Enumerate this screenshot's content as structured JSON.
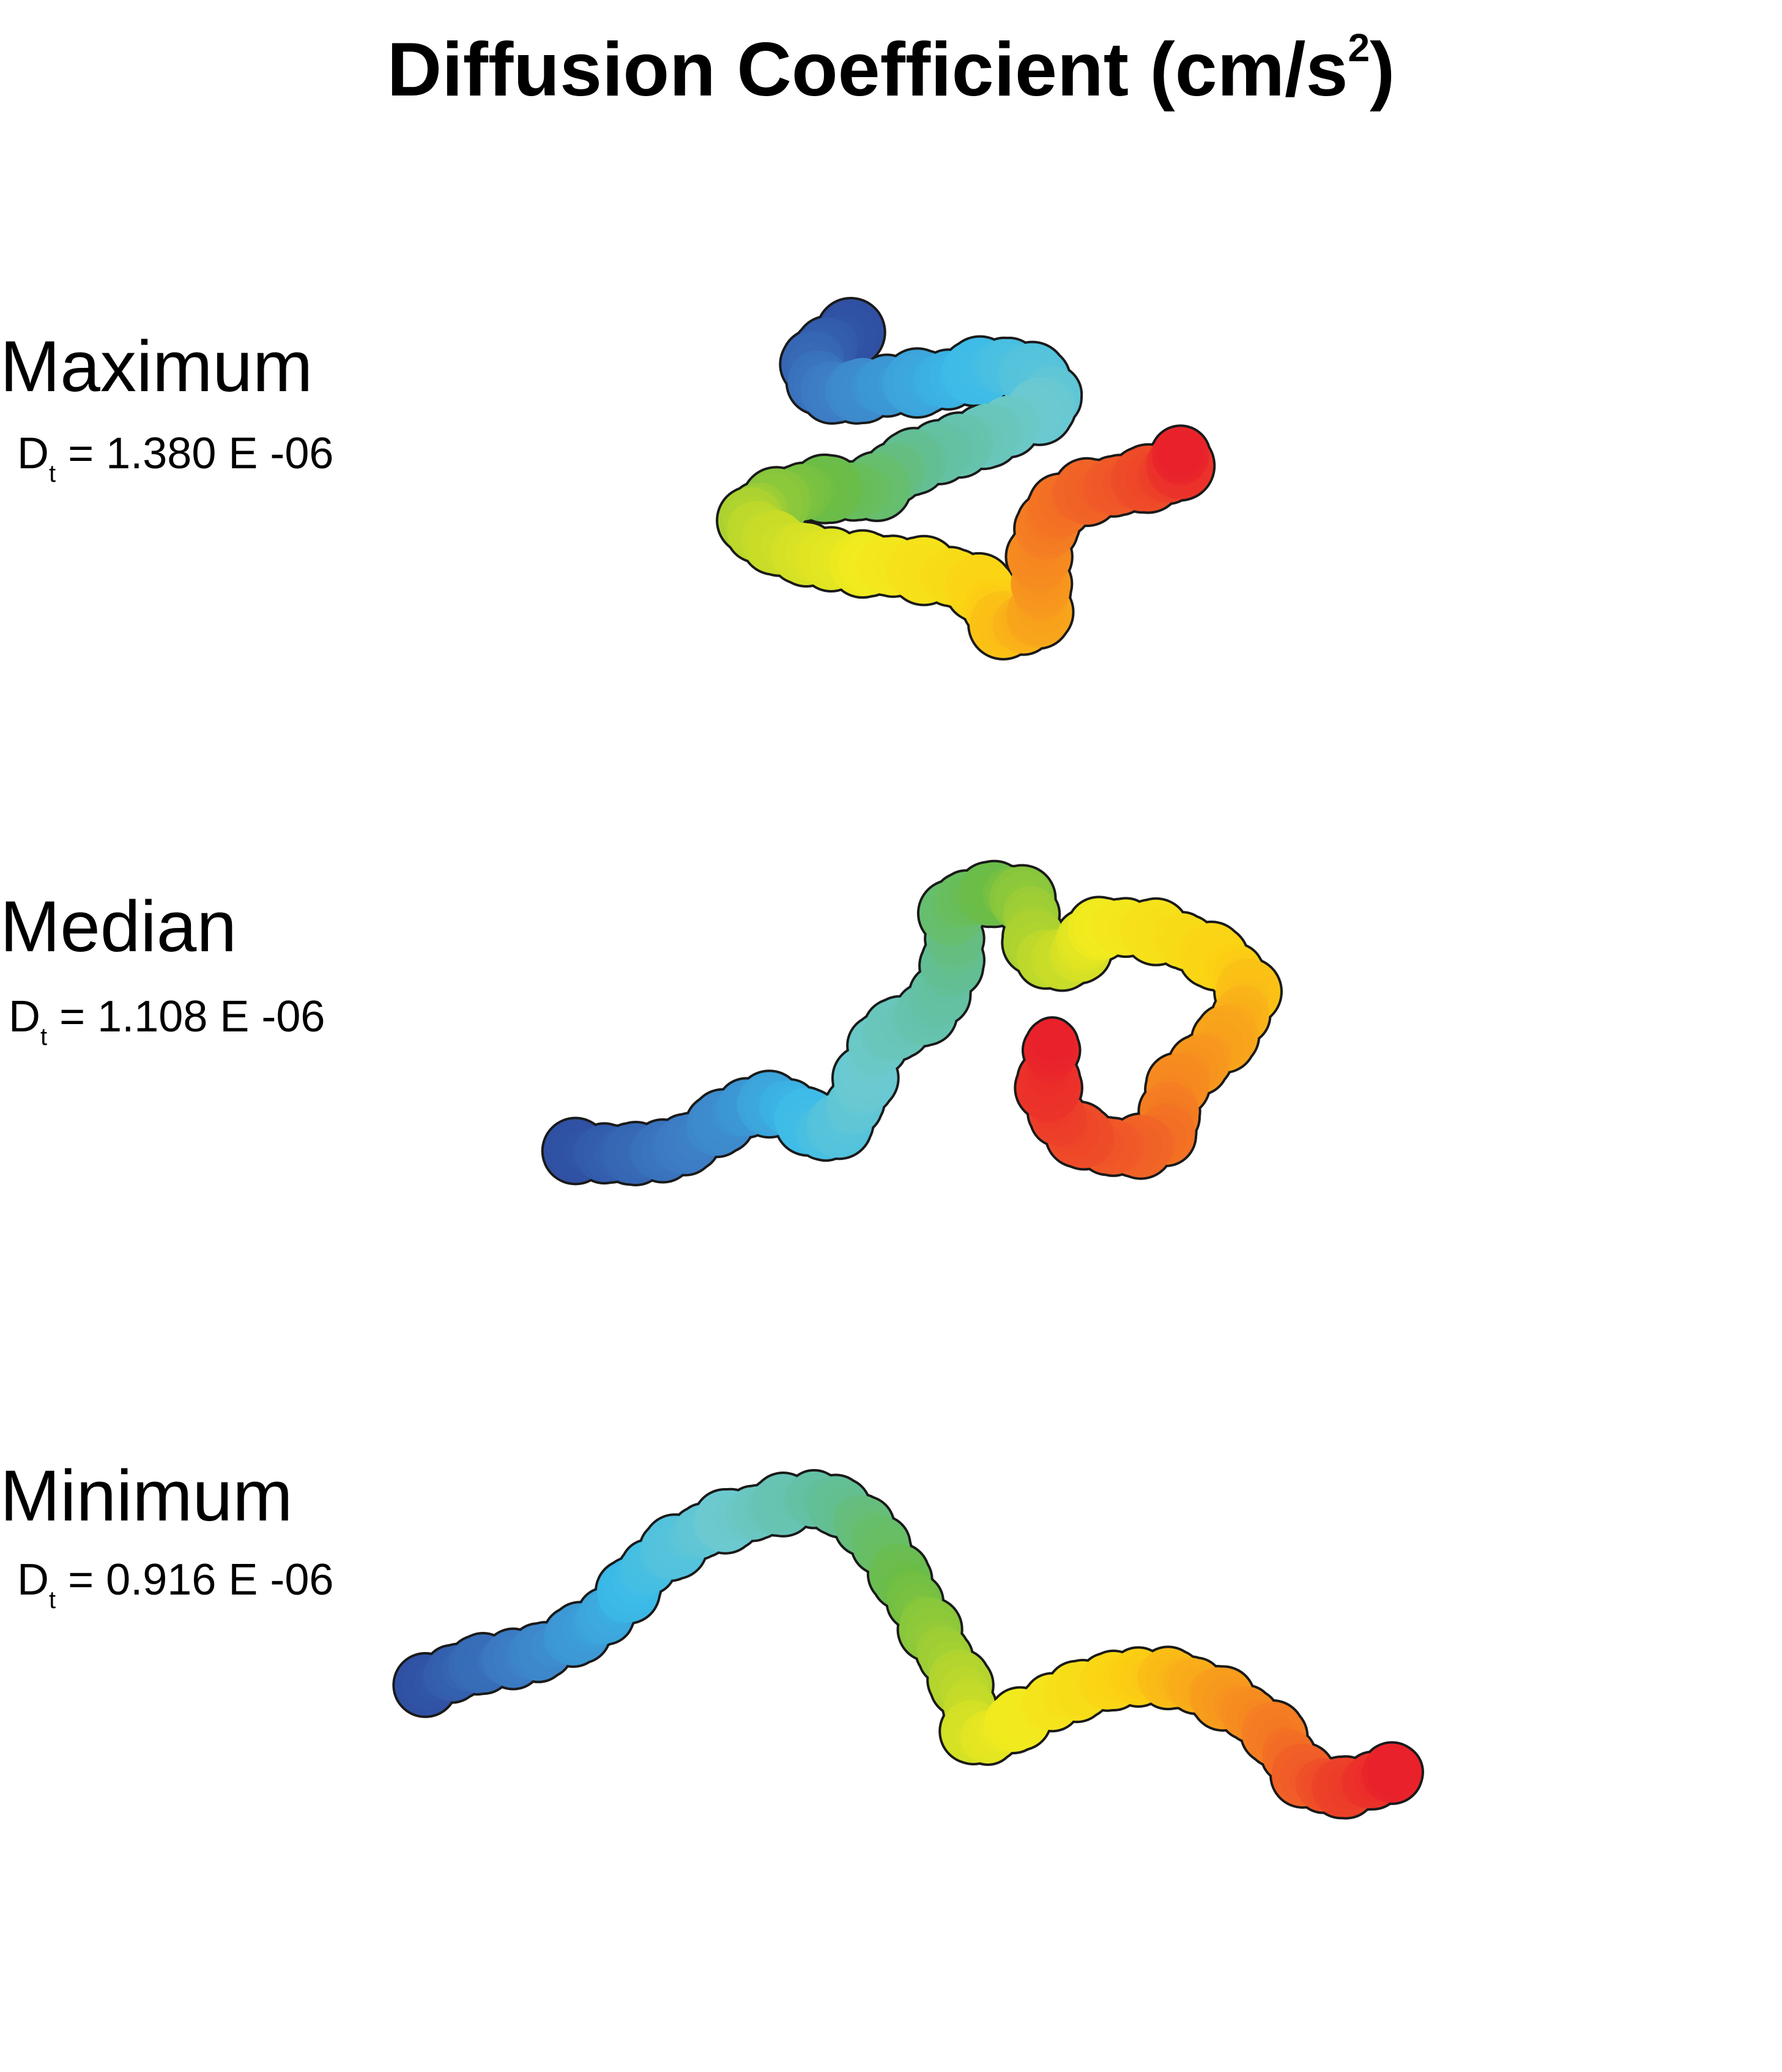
{
  "title": {
    "text": "Diffusion Coefficient (cm/s",
    "superscript": "2",
    "close": ")"
  },
  "panels": [
    {
      "label": "Maximum",
      "dt_symbol": "D",
      "dt_subscript": "t",
      "dt_value": " = 1.380 E -06"
    },
    {
      "label": "Median",
      "dt_symbol": "D",
      "dt_subscript": "t",
      "dt_value": " = 1.108 E -06"
    },
    {
      "label": "Minimum",
      "dt_symbol": "D",
      "dt_subscript": "t",
      "dt_value": " = 0.916 E -06"
    }
  ],
  "colormap": [
    "#2f4ea1",
    "#3d7fc6",
    "#3bbbe9",
    "#6ccad0",
    "#62bf9a",
    "#6bbd45",
    "#b9d72c",
    "#f2eb1e",
    "#fcd113",
    "#f7931e",
    "#f05a28",
    "#e9212a"
  ]
}
